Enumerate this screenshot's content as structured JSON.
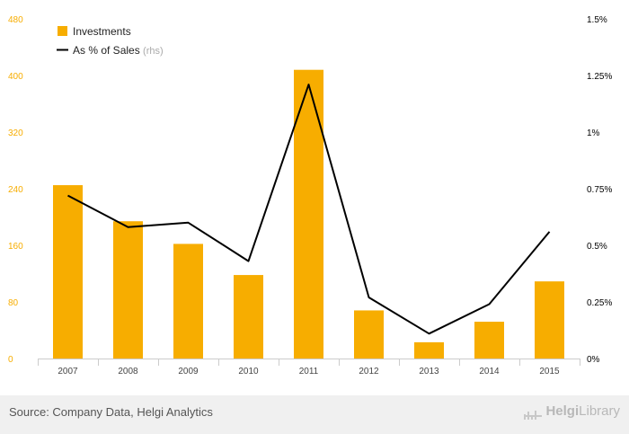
{
  "chart_data": {
    "type": "bar",
    "categories": [
      "2007",
      "2008",
      "2009",
      "2010",
      "2011",
      "2012",
      "2013",
      "2014",
      "2015"
    ],
    "series": [
      {
        "name": "Investments",
        "type": "bar",
        "axis": "left",
        "color": "#f7ad00",
        "values": [
          245,
          194,
          162,
          118,
          408,
          68,
          23,
          52,
          109
        ]
      },
      {
        "name": "As % of Sales",
        "type": "line",
        "axis": "right",
        "color": "#000000",
        "values": [
          0.72,
          0.58,
          0.6,
          0.43,
          1.21,
          0.27,
          0.11,
          0.24,
          0.56
        ]
      }
    ],
    "legend": [
      {
        "label": "Investments",
        "suffix": ""
      },
      {
        "label": "As % of Sales",
        "suffix": "(rhs)"
      }
    ],
    "left_axis": {
      "ylim": [
        0,
        480
      ],
      "ticks": [
        0,
        80,
        160,
        240,
        320,
        400,
        480
      ],
      "tick_labels": [
        "0",
        "80",
        "160",
        "240",
        "320",
        "400",
        "480"
      ],
      "color": "#f7ad00"
    },
    "right_axis": {
      "ylim": [
        0,
        1.5
      ],
      "ticks": [
        0,
        0.25,
        0.5,
        0.75,
        1,
        1.25,
        1.5
      ],
      "tick_labels": [
        "0%",
        "0.25%",
        "0.5%",
        "0.75%",
        "1%",
        "1.25%",
        "1.5%"
      ],
      "color": "#000000"
    },
    "grid": false,
    "legend_position": "top-left"
  },
  "footer": {
    "source": "Source: Company Data, Helgi Analytics",
    "logo_helgi": "Helgi",
    "logo_library": "Library"
  }
}
